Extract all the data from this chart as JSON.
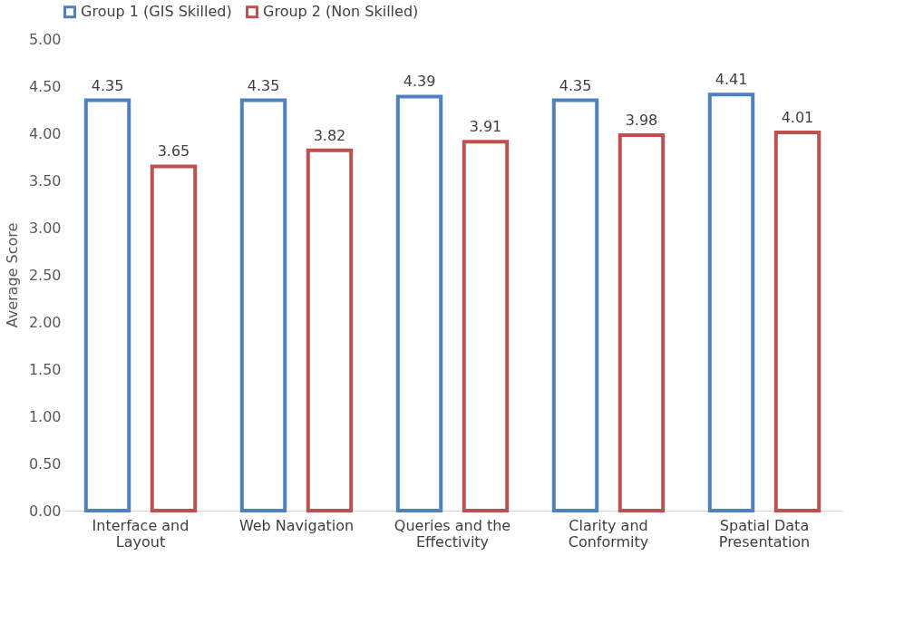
{
  "chart_data": {
    "type": "bar",
    "ylabel": "Average Score",
    "categories": [
      "Interface and Layout",
      "Web Navigation",
      "Queries and the Effectivity",
      "Clarity and Conformity",
      "Spatial Data Presentation"
    ],
    "series": [
      {
        "name": "Group 1 (GIS Skilled)",
        "color": "#4f81bd",
        "values": [
          4.35,
          4.35,
          4.39,
          4.35,
          4.41
        ]
      },
      {
        "name": "Group 2 (Non Skilled)",
        "color": "#c0504d",
        "values": [
          3.65,
          3.82,
          3.91,
          3.98,
          4.01
        ]
      }
    ],
    "ylim": [
      0,
      5
    ],
    "yticks": [
      {
        "value": 0,
        "label": "0.00"
      },
      {
        "value": 0.5,
        "label": "0.50"
      },
      {
        "value": 1,
        "label": "1.00"
      },
      {
        "value": 1.5,
        "label": "1.50"
      },
      {
        "value": 2,
        "label": "2.00"
      },
      {
        "value": 2.5,
        "label": "2.50"
      },
      {
        "value": 3,
        "label": "3.00"
      },
      {
        "value": 3.5,
        "label": "3.50"
      },
      {
        "value": 4,
        "label": "4.00"
      },
      {
        "value": 4.5,
        "label": "4.50"
      },
      {
        "value": 5,
        "label": "5.00"
      }
    ],
    "data_labels": true,
    "legend": "top",
    "grid": false
  }
}
